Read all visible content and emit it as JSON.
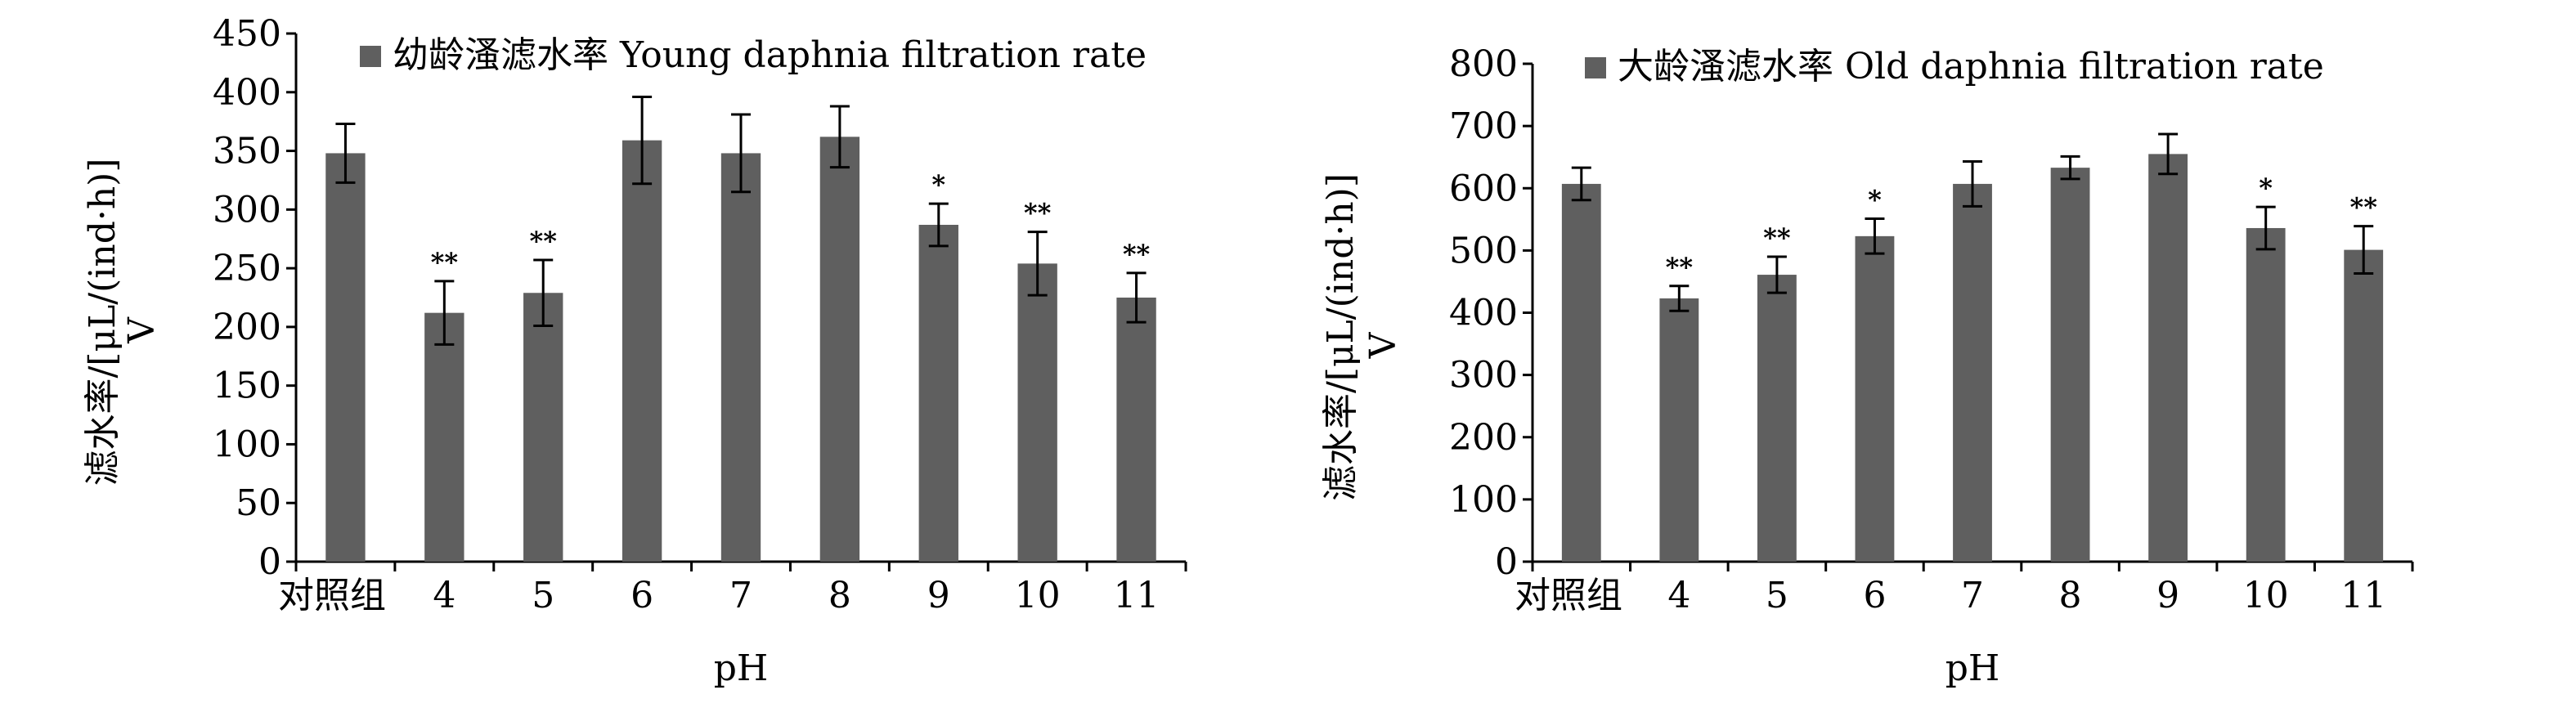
{
  "chart_data": [
    {
      "type": "bar",
      "title": "",
      "xlabel": "pH",
      "ylabel_line1": "滤水率/[μL/(ind·h)]",
      "ylabel_line2": "V",
      "ylim": [
        0,
        450
      ],
      "yticks": [
        0,
        50,
        100,
        150,
        200,
        250,
        300,
        350,
        400,
        450
      ],
      "categories": [
        "对照组",
        "4",
        "5",
        "6",
        "7",
        "8",
        "9",
        "10",
        "11"
      ],
      "series": [
        {
          "name": "幼龄溞滤水率 Young daphnia filtration rate",
          "values": [
            348,
            212,
            229,
            359,
            348,
            362,
            287,
            254,
            225
          ],
          "errors": [
            25,
            27,
            28,
            37,
            33,
            26,
            18,
            27,
            21
          ],
          "significance": [
            "",
            "**",
            "**",
            "",
            "",
            "",
            "*",
            "**",
            "**"
          ]
        }
      ],
      "legend": "top",
      "bar_color": "#5f5f5f"
    },
    {
      "type": "bar",
      "title": "",
      "xlabel": "pH",
      "ylabel_line1": "滤水率/[μL/(ind·h)]",
      "ylabel_line2": "V",
      "ylim": [
        0,
        800
      ],
      "yticks": [
        0,
        100,
        200,
        300,
        400,
        500,
        600,
        700,
        800
      ],
      "categories": [
        "对照组",
        "4",
        "5",
        "6",
        "7",
        "8",
        "9",
        "10",
        "11"
      ],
      "series": [
        {
          "name": "大龄溞滤水率 Old daphnia filtration rate",
          "values": [
            607,
            423,
            461,
            523,
            607,
            633,
            655,
            536,
            501
          ],
          "errors": [
            26,
            20,
            29,
            28,
            36,
            18,
            32,
            34,
            38
          ],
          "significance": [
            "",
            "**",
            "**",
            "*",
            "",
            "",
            "",
            "*",
            "**"
          ]
        }
      ],
      "legend": "top",
      "bar_color": "#5f5f5f"
    }
  ]
}
